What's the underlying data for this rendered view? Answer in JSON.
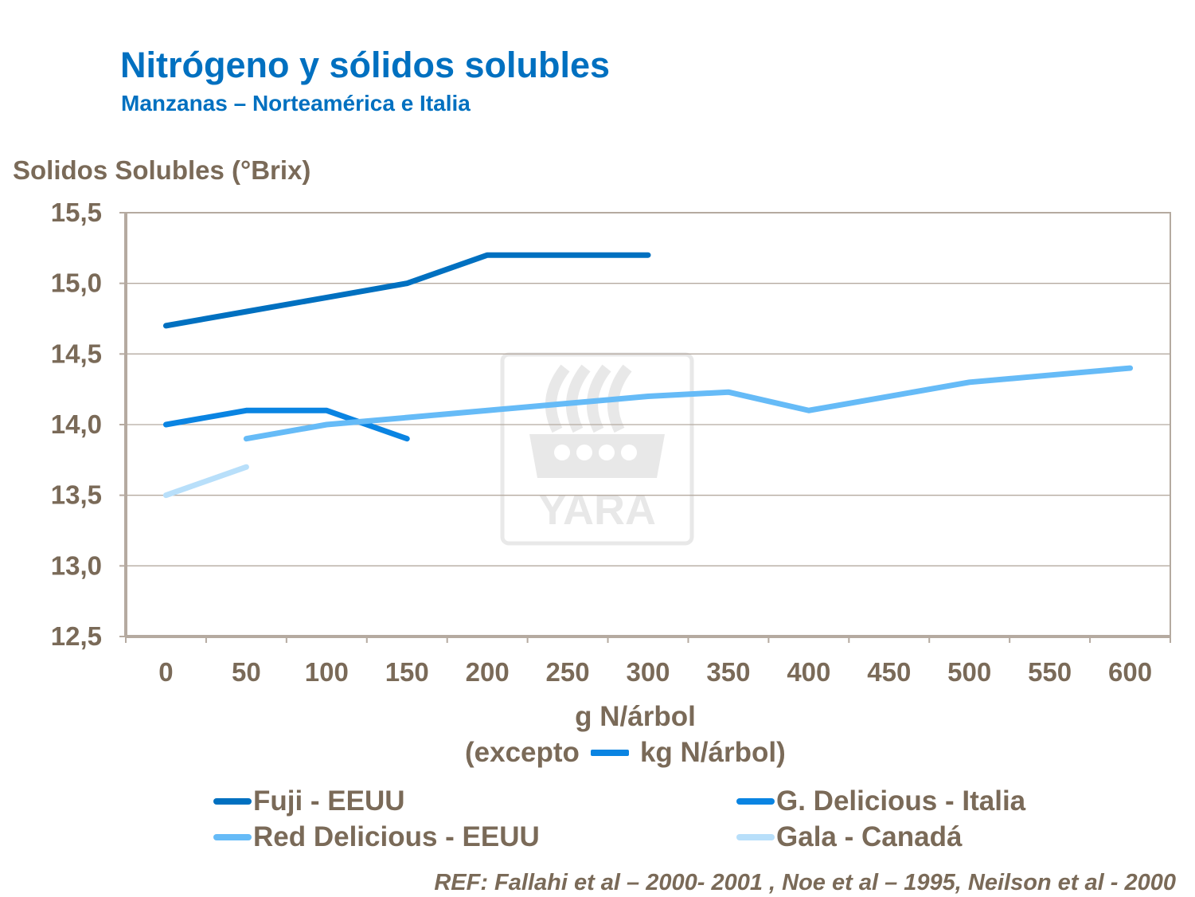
{
  "chart_data": {
    "type": "line",
    "title": "Nitrógeno y sólidos solubles",
    "subtitle": "Manzanas – Norteamérica  e Italia",
    "ylabel": "Solidos Solubles (°Brix)",
    "xlabel_line1": "g N/árbol",
    "xlabel_line2_a": "(excepto",
    "xlabel_line2_b": "kg N/árbol)",
    "categories": [
      "0",
      "50",
      "100",
      "150",
      "200",
      "250",
      "300",
      "350",
      "400",
      "450",
      "500",
      "550",
      "600"
    ],
    "yticks": [
      "12,5",
      "13,0",
      "13,5",
      "14,0",
      "14,5",
      "15,0",
      "15,5"
    ],
    "ylim": [
      12.5,
      15.5
    ],
    "grid": true,
    "legend_placement": "bottom",
    "series": [
      {
        "name": "Fuji - EEUU",
        "color": "#0070C0",
        "values": [
          14.7,
          14.8,
          14.9,
          15.0,
          15.2,
          15.2,
          15.2,
          null,
          null,
          null,
          null,
          null,
          null
        ]
      },
      {
        "name": "G. Delicious - Italia",
        "color": "#0A84E2",
        "values": [
          14.0,
          14.1,
          14.1,
          13.9,
          null,
          null,
          null,
          null,
          null,
          null,
          null,
          null,
          null
        ]
      },
      {
        "name": "Red Delicious - EEUU",
        "color": "#66BBF7",
        "values": [
          null,
          13.9,
          14.0,
          14.05,
          14.1,
          14.15,
          14.2,
          14.23,
          14.1,
          14.2,
          14.3,
          14.35,
          14.4
        ]
      },
      {
        "name": "Gala - Canadá",
        "color": "#B8DFFA",
        "values": [
          13.5,
          13.7,
          null,
          null,
          null,
          null,
          null,
          null,
          null,
          null,
          null,
          null,
          null
        ]
      }
    ]
  },
  "watermark": "YARA",
  "reference": "REF: Fallahi et al – 2000- 2001 , Noe et al – 1995, Neilson et al - 2000"
}
